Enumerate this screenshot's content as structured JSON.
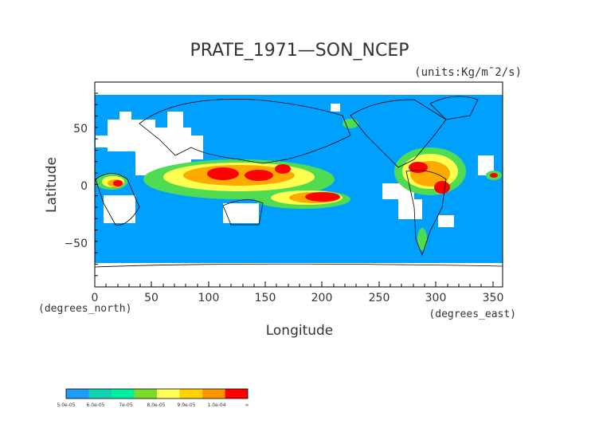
{
  "title": "PRATE_1971—SON_NCEP",
  "units": "(units:Kg/m¯2/s)",
  "axes": {
    "ylabel": "Latitude",
    "xlabel": "Longitude",
    "x_unit": "(degrees_north)",
    "x_unit2": "(degrees_east)",
    "x_ticks": [
      "0",
      "50",
      "100",
      "150",
      "200",
      "250",
      "300",
      "350"
    ],
    "y_ticks": [
      "50",
      "0",
      "−50"
    ]
  },
  "colorbar": {
    "colors": [
      "#1e9bff",
      "#14d2b4",
      "#00f0a0",
      "#78dc28",
      "#ffff5a",
      "#ffd200",
      "#ff9600",
      "#ff0000"
    ],
    "labels": [
      "5.0e-05",
      "6.0e-05",
      "7e-05",
      "8.0e-05",
      "9.0e-05",
      "1.0e-04",
      "∞"
    ]
  },
  "colors": {
    "ocean": "#00a0ff",
    "missing": "#ffffff",
    "heavy": "#ff0000",
    "medium": "#ffaa00",
    "light": "#ffff50",
    "green": "#50dc50"
  }
}
